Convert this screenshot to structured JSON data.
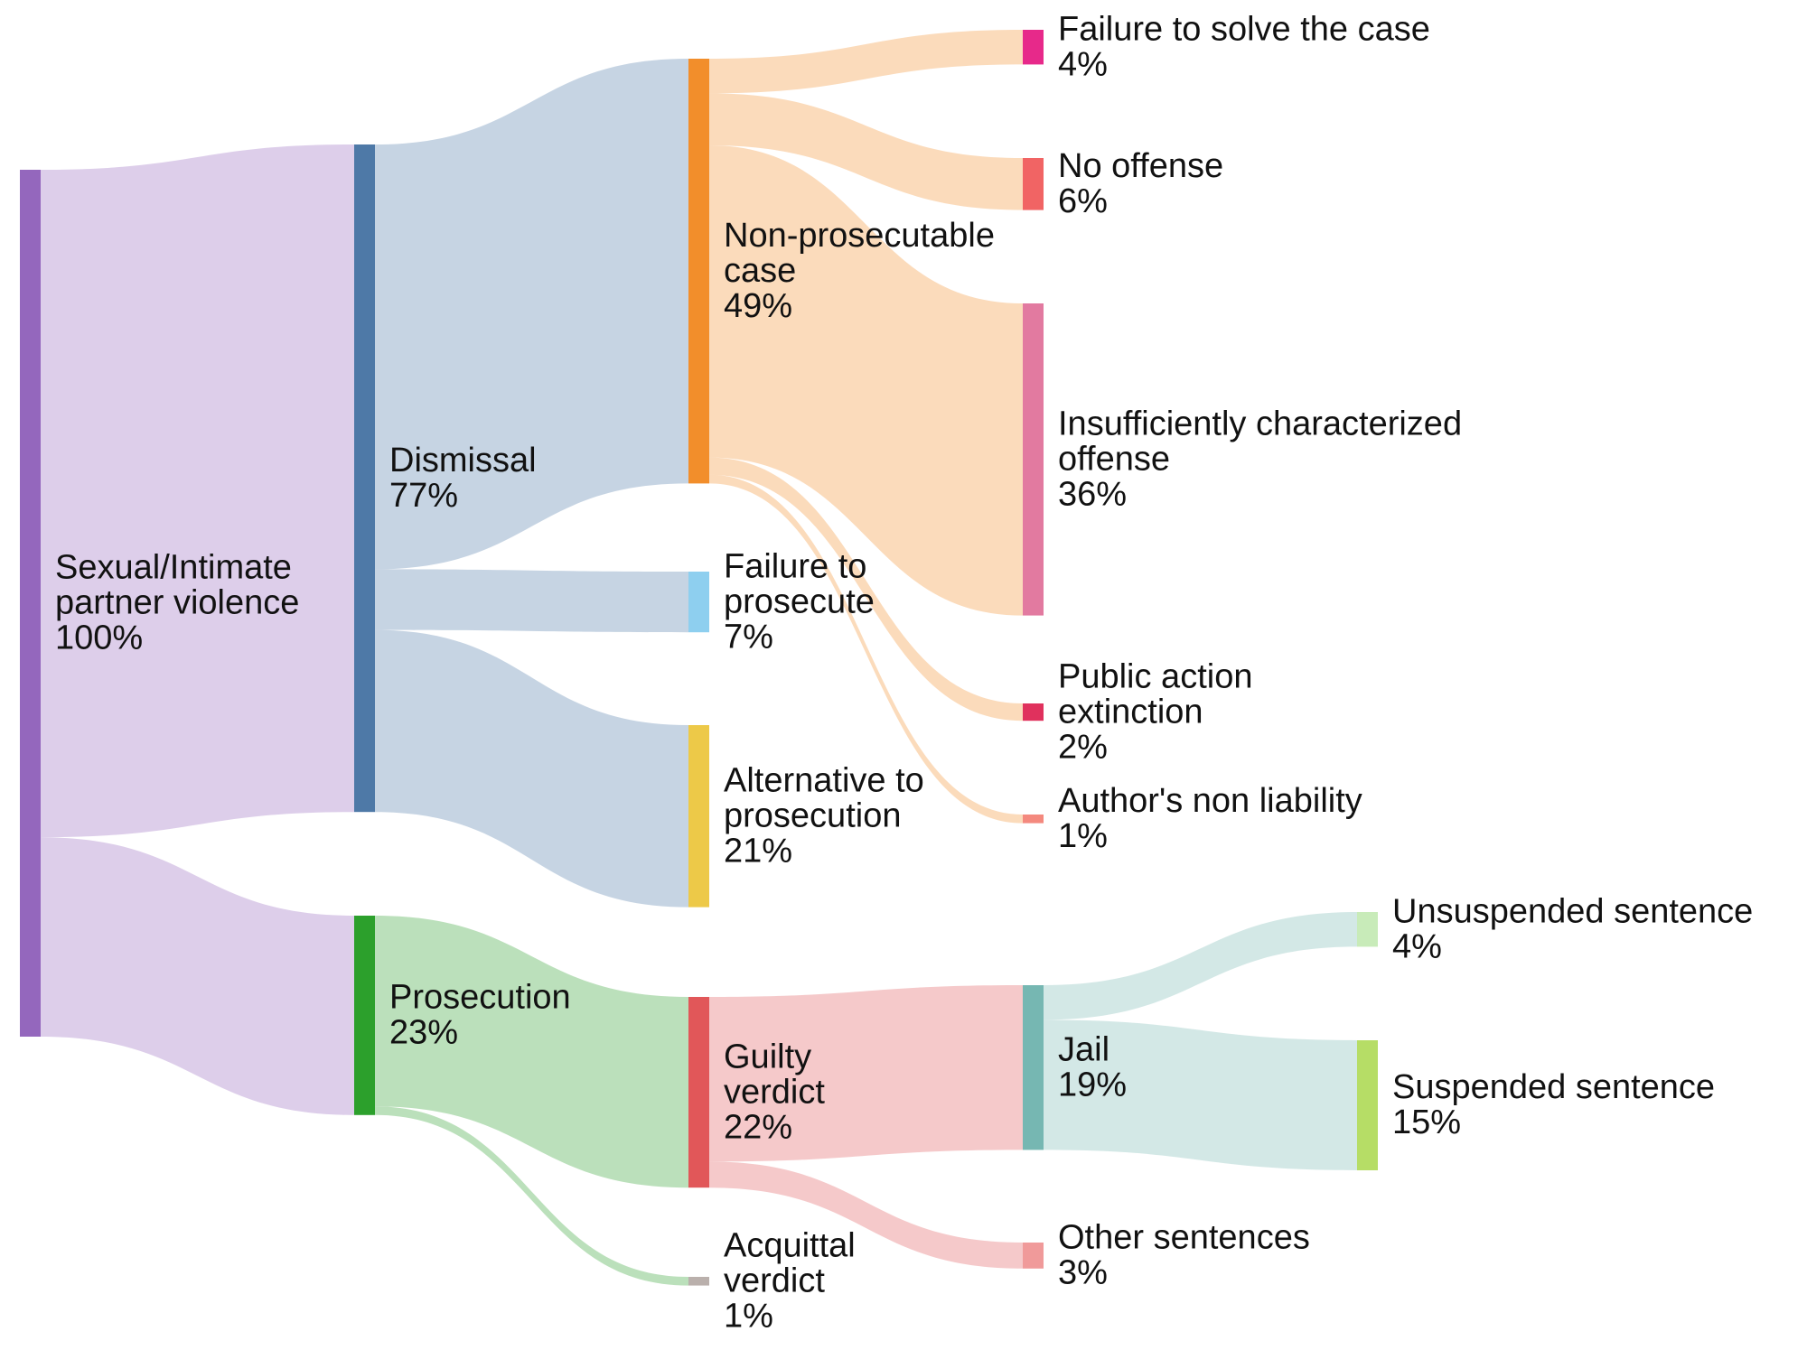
{
  "chart_data": {
    "type": "sankey",
    "nodes": [
      {
        "id": "root",
        "label": [
          "Sexual/Intimate",
          "partner violence"
        ],
        "value_label": "100%",
        "value": 100,
        "color": "#9467bd",
        "column": 0
      },
      {
        "id": "dismissal",
        "label": [
          "Dismissal"
        ],
        "value_label": "77%",
        "value": 77,
        "color": "#4e79a7",
        "column": 1
      },
      {
        "id": "prosecution",
        "label": [
          "Prosecution"
        ],
        "value_label": "23%",
        "value": 23,
        "color": "#2ca02c",
        "column": 1
      },
      {
        "id": "nonpros",
        "label": [
          "Non-prosecutable",
          "case"
        ],
        "value_label": "49%",
        "value": 49,
        "color": "#f28e2b",
        "column": 2
      },
      {
        "id": "failpros",
        "label": [
          "Failure to",
          "prosecute"
        ],
        "value_label": "7%",
        "value": 7,
        "color": "#8ecfef",
        "column": 2
      },
      {
        "id": "alt",
        "label": [
          "Alternative to",
          "prosecution"
        ],
        "value_label": "21%",
        "value": 21,
        "color": "#edc948",
        "column": 2
      },
      {
        "id": "guilty",
        "label": [
          "Guilty",
          "verdict"
        ],
        "value_label": "22%",
        "value": 22,
        "color": "#e15759",
        "column": 2
      },
      {
        "id": "acquittal",
        "label": [
          "Acquittal",
          "verdict"
        ],
        "value_label": "1%",
        "value": 1,
        "color": "#bab0ac",
        "column": 2
      },
      {
        "id": "failsolve",
        "label": [
          "Failure to solve the case"
        ],
        "value_label": "4%",
        "value": 4,
        "color": "#e7298a",
        "column": 3
      },
      {
        "id": "nooffense",
        "label": [
          "No offense"
        ],
        "value_label": "6%",
        "value": 6,
        "color": "#f16464",
        "column": 3
      },
      {
        "id": "insuff",
        "label": [
          "Insufficiently characterized",
          "offense"
        ],
        "value_label": "36%",
        "value": 36,
        "color": "#e27aa0",
        "column": 3
      },
      {
        "id": "pubaction",
        "label": [
          "Public action",
          "extinction"
        ],
        "value_label": "2%",
        "value": 2,
        "color": "#e0315d",
        "column": 3
      },
      {
        "id": "author",
        "label": [
          "Author's non liability"
        ],
        "value_label": "1%",
        "value": 1,
        "color": "#f4897e",
        "column": 3
      },
      {
        "id": "jail",
        "label": [
          "Jail"
        ],
        "value_label": "19%",
        "value": 19,
        "color": "#76b7b2",
        "column": 3
      },
      {
        "id": "other",
        "label": [
          "Other sentences"
        ],
        "value_label": "3%",
        "value": 3,
        "color": "#f09a9a",
        "column": 3
      },
      {
        "id": "unsusp",
        "label": [
          "Unsuspended sentence"
        ],
        "value_label": "4%",
        "value": 4,
        "color": "#c8ebb9",
        "column": 4
      },
      {
        "id": "susp",
        "label": [
          "Suspended sentence"
        ],
        "value_label": "15%",
        "value": 15,
        "color": "#b6dd66",
        "column": 4
      }
    ],
    "links": [
      {
        "source": "root",
        "target": "dismissal",
        "value": 77
      },
      {
        "source": "root",
        "target": "prosecution",
        "value": 23
      },
      {
        "source": "dismissal",
        "target": "nonpros",
        "value": 49
      },
      {
        "source": "dismissal",
        "target": "failpros",
        "value": 7
      },
      {
        "source": "dismissal",
        "target": "alt",
        "value": 21
      },
      {
        "source": "prosecution",
        "target": "guilty",
        "value": 22
      },
      {
        "source": "prosecution",
        "target": "acquittal",
        "value": 1
      },
      {
        "source": "nonpros",
        "target": "failsolve",
        "value": 4
      },
      {
        "source": "nonpros",
        "target": "nooffense",
        "value": 6
      },
      {
        "source": "nonpros",
        "target": "insuff",
        "value": 36
      },
      {
        "source": "nonpros",
        "target": "pubaction",
        "value": 2
      },
      {
        "source": "nonpros",
        "target": "author",
        "value": 1
      },
      {
        "source": "guilty",
        "target": "jail",
        "value": 19
      },
      {
        "source": "guilty",
        "target": "other",
        "value": 3
      },
      {
        "source": "jail",
        "target": "unsusp",
        "value": 4
      },
      {
        "source": "jail",
        "target": "susp",
        "value": 15
      }
    ]
  }
}
